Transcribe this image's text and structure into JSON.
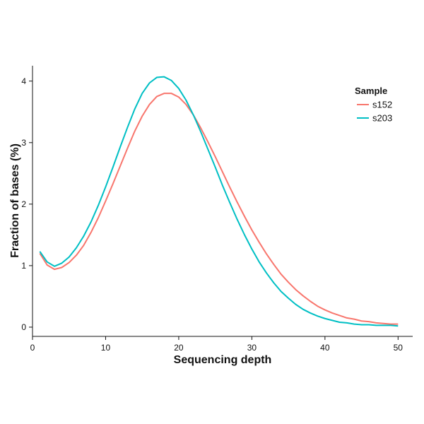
{
  "chart_data": {
    "type": "line",
    "title": "",
    "xlabel": "Sequencing depth",
    "ylabel": "Fraction of bases (%)",
    "xlim": [
      0,
      52
    ],
    "ylim": [
      -0.15,
      4.25
    ],
    "x_ticks": [
      0,
      10,
      20,
      30,
      40,
      50
    ],
    "y_ticks": [
      0,
      1,
      2,
      3,
      4
    ],
    "grid": false,
    "legend": {
      "title": "Sample",
      "placement": "top-right"
    },
    "x": [
      1,
      2,
      3,
      4,
      5,
      6,
      7,
      8,
      9,
      10,
      11,
      12,
      13,
      14,
      15,
      16,
      17,
      18,
      19,
      20,
      21,
      22,
      23,
      24,
      25,
      26,
      27,
      28,
      29,
      30,
      31,
      32,
      33,
      34,
      35,
      36,
      37,
      38,
      39,
      40,
      41,
      42,
      43,
      44,
      45,
      46,
      47,
      48,
      49,
      50
    ],
    "series": [
      {
        "name": "s152",
        "color": "#F8766D",
        "values": [
          1.2,
          1.01,
          0.94,
          0.97,
          1.05,
          1.17,
          1.33,
          1.54,
          1.78,
          2.05,
          2.33,
          2.62,
          2.91,
          3.19,
          3.43,
          3.62,
          3.75,
          3.8,
          3.8,
          3.74,
          3.62,
          3.45,
          3.24,
          3.01,
          2.77,
          2.52,
          2.27,
          2.03,
          1.8,
          1.58,
          1.38,
          1.19,
          1.02,
          0.86,
          0.73,
          0.61,
          0.51,
          0.42,
          0.34,
          0.28,
          0.23,
          0.19,
          0.15,
          0.13,
          0.1,
          0.09,
          0.07,
          0.06,
          0.05,
          0.05
        ]
      },
      {
        "name": "s203",
        "color": "#00BFC4",
        "values": [
          1.23,
          1.06,
          0.99,
          1.04,
          1.14,
          1.29,
          1.48,
          1.71,
          1.98,
          2.28,
          2.6,
          2.93,
          3.25,
          3.55,
          3.8,
          3.97,
          4.06,
          4.07,
          4.01,
          3.88,
          3.69,
          3.45,
          3.18,
          2.89,
          2.6,
          2.3,
          2.02,
          1.75,
          1.5,
          1.27,
          1.06,
          0.88,
          0.72,
          0.58,
          0.47,
          0.37,
          0.29,
          0.23,
          0.18,
          0.14,
          0.11,
          0.08,
          0.07,
          0.05,
          0.04,
          0.04,
          0.03,
          0.03,
          0.03,
          0.02
        ]
      }
    ]
  }
}
